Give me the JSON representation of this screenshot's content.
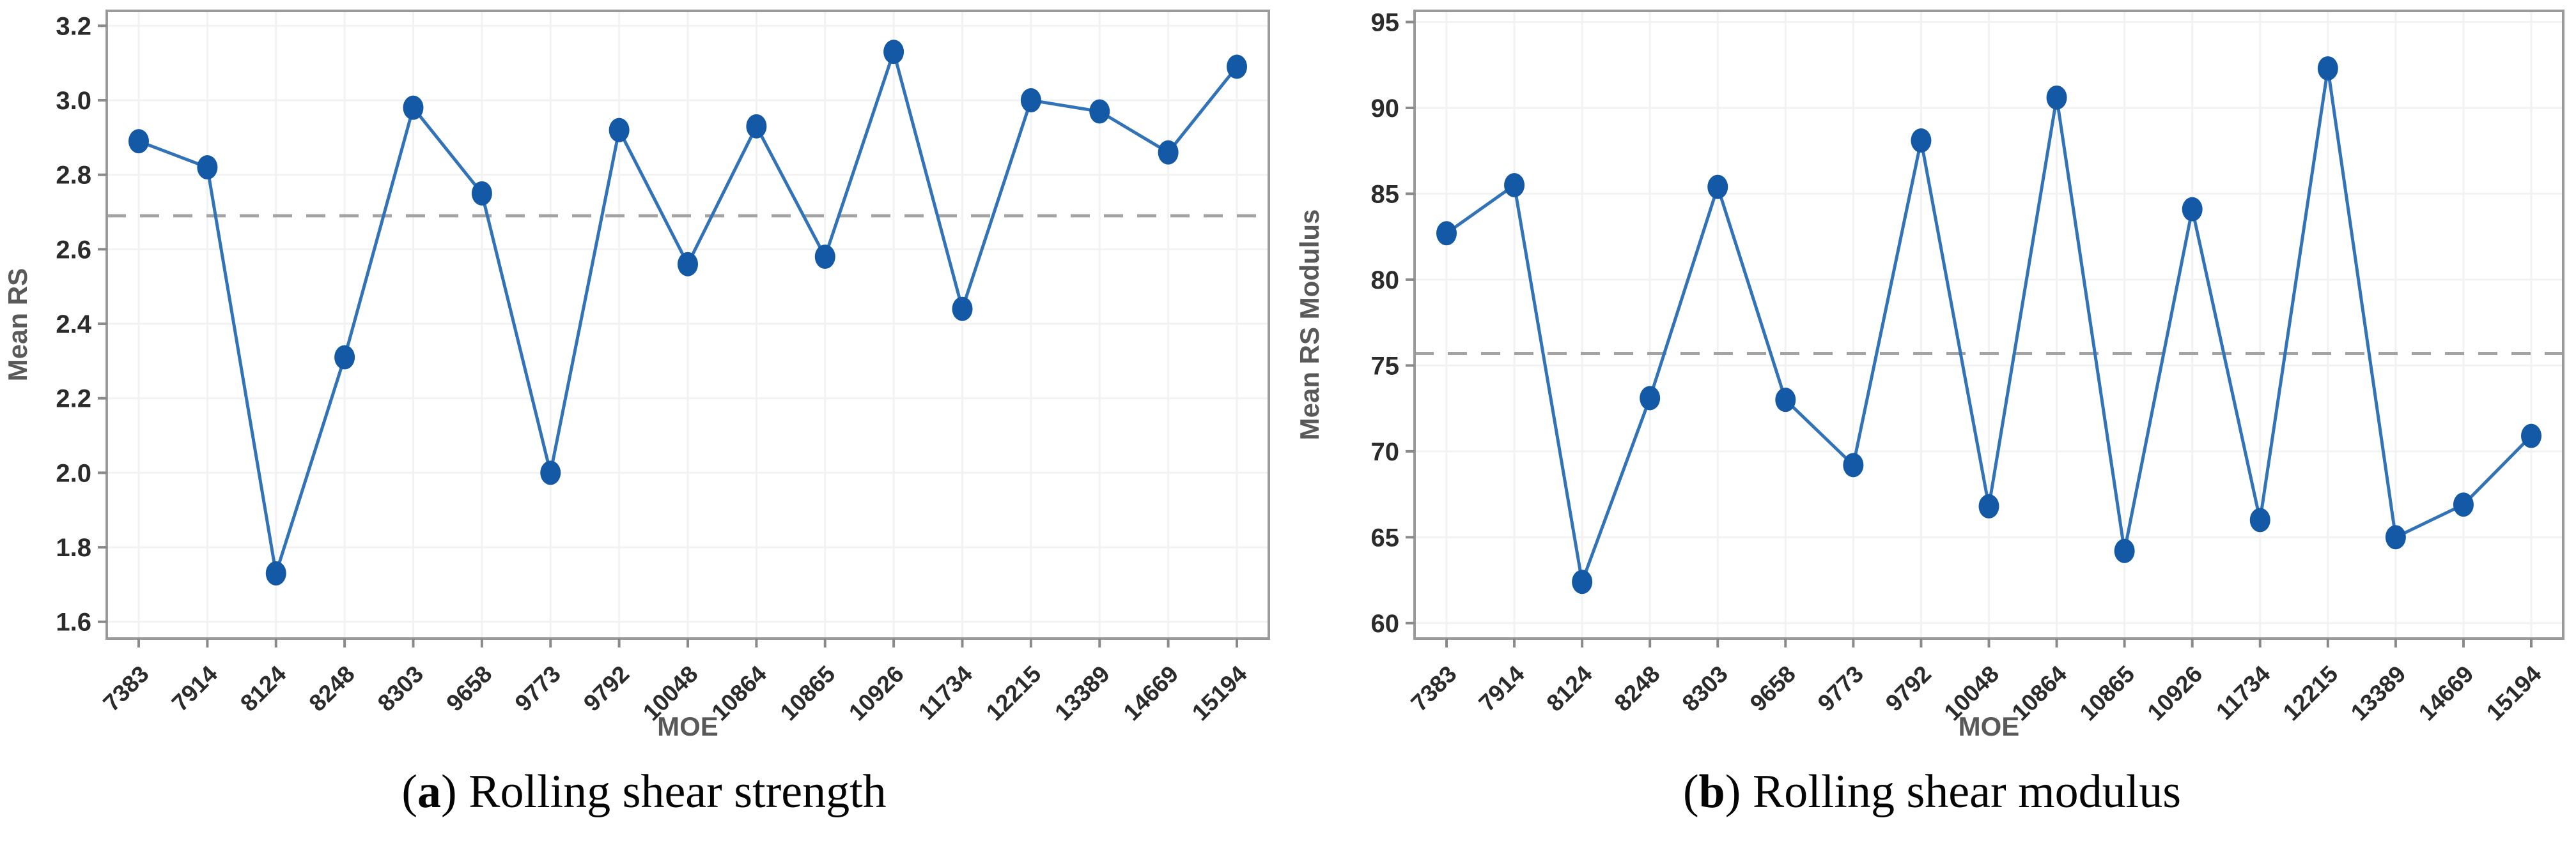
{
  "figure": {
    "background": "#ffffff",
    "marker_color": "#1459a5",
    "line_color": "#3273b8",
    "mean_line_color": "#a3a3a3",
    "grid_color": "#f2f2f2",
    "frame_color": "#9a9a9a",
    "tick_color": "#8a8a8a",
    "tick_label_color": "#2b2b2b",
    "axis_title_color": "#595959"
  },
  "captions": [
    {
      "prefix": "(",
      "letter": "a",
      "rest": ") Rolling shear strength"
    },
    {
      "prefix": "(",
      "letter": "b",
      "rest": ") Rolling shear modulus"
    }
  ],
  "chart_data": [
    {
      "type": "line",
      "title": "",
      "xlabel": "MOE",
      "ylabel": "Mean RS",
      "legend": "none",
      "grid": true,
      "categories": [
        "7383",
        "7914",
        "8124",
        "8248",
        "8303",
        "9658",
        "9773",
        "9792",
        "10048",
        "10864",
        "10865",
        "10926",
        "11734",
        "12215",
        "13389",
        "14669",
        "15194"
      ],
      "values": [
        2.89,
        2.82,
        1.73,
        2.31,
        2.98,
        2.75,
        2.0,
        2.92,
        2.56,
        2.93,
        2.58,
        3.13,
        2.44,
        3.0,
        2.97,
        2.86,
        3.09
      ],
      "mean_line": 2.69,
      "yticks": [
        "3.2",
        "3.0",
        "2.8",
        "2.6",
        "2.4",
        "2.2",
        "2.0",
        "1.8",
        "1.6"
      ],
      "ylim": [
        1.555,
        3.24
      ]
    },
    {
      "type": "line",
      "title": "",
      "xlabel": "MOE",
      "ylabel": "Mean RS Modulus",
      "legend": "none",
      "grid": true,
      "categories": [
        "7383",
        "7914",
        "8124",
        "8248",
        "8303",
        "9658",
        "9773",
        "9792",
        "10048",
        "10864",
        "10865",
        "10926",
        "11734",
        "12215",
        "13389",
        "14669",
        "15194"
      ],
      "values": [
        82.7,
        85.5,
        62.4,
        73.1,
        85.4,
        73.0,
        69.2,
        88.1,
        66.8,
        90.6,
        64.2,
        84.1,
        66.0,
        92.3,
        65.0,
        66.9,
        70.9
      ],
      "mean_line": 75.7,
      "yticks": [
        "95",
        "90",
        "85",
        "80",
        "75",
        "70",
        "65",
        "60"
      ],
      "ylim": [
        59.1,
        95.65
      ]
    }
  ]
}
